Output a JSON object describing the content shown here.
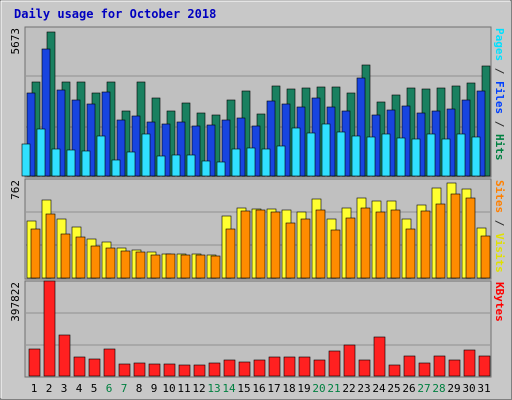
{
  "chart_data": {
    "type": "bar",
    "title": "Daily usage for October 2018",
    "categories": [
      "1",
      "2",
      "3",
      "4",
      "5",
      "6",
      "7",
      "8",
      "9",
      "10",
      "11",
      "12",
      "13",
      "14",
      "15",
      "16",
      "17",
      "18",
      "19",
      "20",
      "21",
      "22",
      "23",
      "24",
      "25",
      "26",
      "27",
      "28",
      "29",
      "30",
      "31"
    ],
    "weekend_categories": [
      "6",
      "7",
      "13",
      "14",
      "20",
      "21",
      "27",
      "28"
    ],
    "panels": [
      {
        "key": "hits_files_pages",
        "ymax_label": "5673",
        "ymax": 5673,
        "side_label": [
          "Pages",
          "/",
          "Files",
          "/",
          "Hits"
        ],
        "side_label_colors": [
          "#00e0ff",
          "#303030",
          "#0040ff",
          "#303030",
          "#008040"
        ],
        "series": [
          {
            "name": "Hits",
            "color": "#1a8060",
            "values": [
              3600,
              5520,
              3600,
              3600,
              3200,
              3600,
              2480,
              3600,
              3000,
              2480,
              2800,
              2420,
              2340,
              2900,
              3240,
              2380,
              3460,
              3340,
              3360,
              3400,
              3420,
              3180,
              4260,
              2840,
              3100,
              3380,
              3320,
              3360,
              3460,
              3560,
              4200
            ]
          },
          {
            "name": "Files",
            "color": "#1844e0",
            "values": [
              3200,
              4850,
              3300,
              2900,
              2770,
              3220,
              2140,
              2300,
              2060,
              1980,
              2080,
              1930,
              1940,
              2140,
              2230,
              1910,
              2870,
              2770,
              2660,
              2990,
              2640,
              2490,
              3740,
              2340,
              2520,
              2700,
              2420,
              2500,
              2570,
              2920,
              3250
            ]
          },
          {
            "name": "Pages",
            "color": "#30e0ff",
            "values": [
              1220,
              1800,
              1050,
              1000,
              970,
              1550,
              620,
              910,
              1600,
              770,
              820,
              820,
              570,
              540,
              1020,
              1080,
              1020,
              1160,
              1850,
              1630,
              1980,
              1700,
              1540,
              1480,
              1600,
              1470,
              1400,
              1620,
              1400,
              1610,
              1500
            ]
          }
        ]
      },
      {
        "key": "visits_sites",
        "ymax_label": "762",
        "ymax": 762,
        "side_label": [
          "Sites",
          "/",
          "Visits"
        ],
        "side_label_colors": [
          "#ff8000",
          "#303030",
          "#e0e000"
        ],
        "series": [
          {
            "name": "Visits",
            "color": "#ffff30",
            "values": [
              440,
              610,
              460,
              400,
              300,
              280,
              230,
              220,
              200,
              190,
              190,
              190,
              180,
              480,
              545,
              535,
              535,
              525,
              515,
              615,
              455,
              545,
              620,
              595,
              595,
              455,
              565,
              700,
              735,
              690,
              390
            ]
          },
          {
            "name": "Sites",
            "color": "#ff8c00",
            "values": [
              380,
              500,
              340,
              320,
              250,
              230,
              210,
              200,
              180,
              190,
              180,
              180,
              170,
              380,
              520,
              525,
              510,
              425,
              460,
              530,
              375,
              470,
              545,
              510,
              530,
              380,
              520,
              575,
              650,
              620,
              325
            ]
          }
        ]
      },
      {
        "key": "kbytes",
        "ymax_label": "397822",
        "ymax": 397822,
        "side_label": [
          "KBytes"
        ],
        "side_label_colors": [
          "#ff0000"
        ],
        "series": [
          {
            "name": "KBytes",
            "color": "#ff2020",
            "values": [
              113000,
              400000,
              175000,
              80000,
              74000,
              115000,
              49000,
              55000,
              50000,
              49000,
              45000,
              48000,
              55000,
              69000,
              58000,
              69000,
              80000,
              80000,
              80000,
              68000,
              104000,
              133000,
              67000,
              165000,
              45000,
              86000,
              56000,
              85000,
              66000,
              108000,
              84000
            ]
          }
        ]
      }
    ]
  }
}
